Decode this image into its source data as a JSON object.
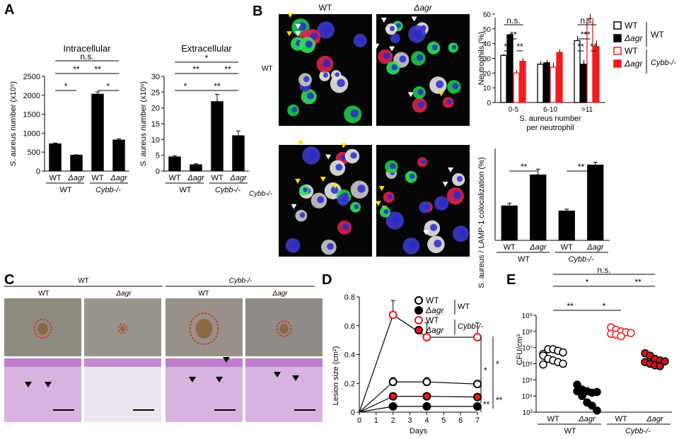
{
  "panel_letters": {
    "a": "A",
    "b": "B",
    "c": "C",
    "d": "D",
    "e": "E"
  },
  "common": {
    "wt": "WT",
    "dagr": "Δagr",
    "cybb": "Cybb-/-",
    "ns": "n.s.",
    "one_star": "*",
    "two_star": "**"
  },
  "panel_b": {
    "col_wt": "WT",
    "col_dagr": "Δagr",
    "row_wt": "WT",
    "row_cybb": "Cybb-/-"
  },
  "panel_c": {
    "group_wt": "WT",
    "group_cybb": "Cybb-/-",
    "sub": [
      "WT",
      "Δagr",
      "WT",
      "Δagr"
    ]
  },
  "panel_e": {
    "ylabel": "CFU/cm²"
  },
  "chart_data": [
    {
      "id": "A-intracellular",
      "type": "bar",
      "title": "Intracellular",
      "ylabel": "S. aureus number (x10⁵)",
      "categories": [
        "WT",
        "Δagr",
        "WT",
        "Δagr"
      ],
      "groups": [
        "WT",
        "Cybb-/-"
      ],
      "values": [
        720,
        420,
        2030,
        820
      ],
      "errors": [
        20,
        10,
        60,
        30
      ],
      "ylim": [
        0,
        2500
      ],
      "yticks": [
        0,
        500,
        1000,
        1500,
        2000,
        2500
      ],
      "significance": [
        [
          "*",
          "WT",
          "Δagr"
        ],
        [
          "*",
          "WT Cybb",
          "Δagr Cybb"
        ],
        [
          "**",
          "WT",
          "WT Cybb"
        ],
        [
          "**",
          "Δagr",
          "Δagr Cybb"
        ],
        [
          "n.s.",
          "WT",
          "Δagr Cybb"
        ]
      ]
    },
    {
      "id": "A-extracellular",
      "type": "bar",
      "title": "Extracellular",
      "ylabel": "S. aureus number (x10⁵)",
      "categories": [
        "WT",
        "Δagr",
        "WT",
        "Δagr"
      ],
      "groups": [
        "WT",
        "Cybb-/-"
      ],
      "values": [
        4.5,
        2.0,
        22,
        11.2
      ],
      "errors": [
        0.4,
        0.3,
        2.3,
        1.5
      ],
      "ylim": [
        0,
        30
      ],
      "yticks": [
        0,
        5,
        10,
        15,
        20,
        25,
        30
      ]
    },
    {
      "id": "B-neutrophils",
      "type": "bar",
      "ylabel": "Neutrophils (%)",
      "xlabel": "S. aureus number per neutrophil",
      "categories": [
        "0-5",
        "6-10",
        ">11"
      ],
      "series": [
        {
          "name": "WT",
          "values": [
            32,
            26,
            42
          ],
          "errors": [
            1,
            2,
            3
          ]
        },
        {
          "name": "Δagr",
          "values": [
            46,
            27,
            26
          ],
          "errors": [
            1,
            2,
            3
          ]
        },
        {
          "name": "WT",
          "values": [
            20,
            24,
            57
          ],
          "errors": [
            2,
            3,
            3
          ]
        },
        {
          "name": "Δagr",
          "values": [
            28,
            34,
            38
          ],
          "errors": [
            2,
            2,
            4
          ]
        }
      ],
      "legend": [
        [
          "WT",
          "WT"
        ],
        [
          "Δagr",
          "WT"
        ],
        [
          "WT",
          "Cybb-/-"
        ],
        [
          "Δagr",
          "Cybb-/-"
        ]
      ],
      "ylim": [
        0,
        60
      ],
      "yticks": [
        0,
        10,
        20,
        30,
        40,
        50,
        60
      ]
    },
    {
      "id": "B-colocalization",
      "type": "bar",
      "ylabel": "S. aureus / LAMP-1 colocalization (%)",
      "categories": [
        "WT",
        "Δagr",
        "WT",
        "Δagr"
      ],
      "groups": [
        "WT",
        "Cybb-/-"
      ],
      "values": [
        15,
        28.5,
        12.8,
        32.8
      ],
      "errors": [
        1.2,
        2.5,
        0.8,
        1.2
      ],
      "ylim": [
        0,
        40
      ]
    },
    {
      "id": "D-lesion",
      "type": "line",
      "xlabel": "Days",
      "ylabel": "Lesion size (cm²)",
      "x": [
        0,
        2,
        4,
        7
      ],
      "series": [
        {
          "name": "WT",
          "values": [
            0,
            0.21,
            0.21,
            0.195
          ],
          "errors": [
            0,
            0.03,
            0.03,
            0.025
          ]
        },
        {
          "name": "Δagr",
          "values": [
            0,
            0.04,
            0.04,
            0.04
          ],
          "errors": [
            0,
            0,
            0,
            0
          ]
        },
        {
          "name": "WT",
          "values": [
            0,
            0.675,
            0.52,
            0.52
          ],
          "errors": [
            0,
            0.1,
            0.1,
            0.1
          ]
        },
        {
          "name": "Δagr",
          "values": [
            0,
            0.11,
            0.11,
            0.105
          ],
          "errors": [
            0,
            0.01,
            0.01,
            0.01
          ]
        }
      ],
      "xlim": [
        0,
        7
      ],
      "ylim": [
        0,
        0.8
      ],
      "xticks": [
        0,
        1,
        2,
        3,
        4,
        5,
        6,
        7
      ],
      "yticks": [
        0,
        0.2,
        0.4,
        0.6,
        0.8
      ],
      "ytick_labels": [
        "0",
        "0.2",
        "0.4",
        "0.6",
        "0.8"
      ]
    },
    {
      "id": "E-cfu",
      "type": "scatter",
      "ylabel": "CFU/cm²",
      "categories": [
        "WT",
        "Δagr",
        "WT",
        "Δagr"
      ],
      "groups": [
        "WT",
        "Cybb-/-"
      ],
      "log_scale": true,
      "ytick_labels": [
        "10³",
        "10⁴",
        "10⁵",
        "10⁶",
        "10⁷",
        "10⁸",
        "10⁹"
      ],
      "points": [
        [
          6.6,
          6.9,
          6.9,
          6.8,
          6.7,
          6.5,
          6.3,
          6.2,
          6.1,
          6.0,
          5.95
        ],
        [
          4.7,
          4.4,
          4.3,
          4.2,
          4.25,
          4.3,
          4.0,
          3.6,
          3.4,
          3.1
        ],
        [
          8.25,
          8.1,
          8.0,
          7.95,
          7.9,
          7.85,
          7.8,
          7.7
        ],
        [
          6.65,
          6.5,
          6.3,
          6.2,
          6.15,
          6.1,
          6.0,
          5.9,
          5.85
        ]
      ]
    }
  ]
}
